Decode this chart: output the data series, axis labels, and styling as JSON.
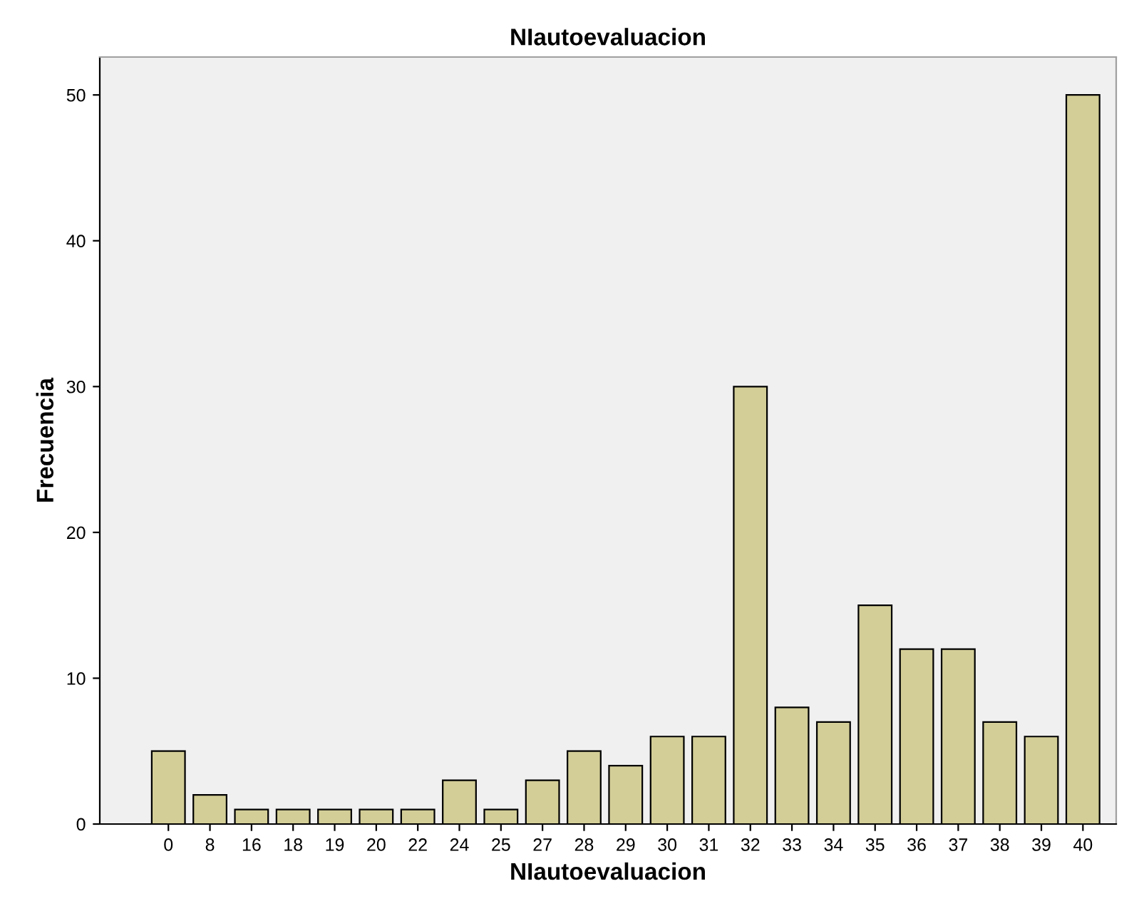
{
  "chart_data": {
    "type": "bar",
    "title": "NIautoevaluacion",
    "xlabel": "NIautoevaluacion",
    "ylabel": "Frecuencia",
    "categories": [
      "0",
      "8",
      "16",
      "18",
      "19",
      "20",
      "22",
      "24",
      "25",
      "27",
      "28",
      "29",
      "30",
      "31",
      "32",
      "33",
      "34",
      "35",
      "36",
      "37",
      "38",
      "39",
      "40"
    ],
    "values": [
      5,
      2,
      1,
      1,
      1,
      1,
      1,
      3,
      1,
      3,
      5,
      4,
      6,
      6,
      30,
      8,
      7,
      15,
      12,
      12,
      7,
      6,
      50
    ],
    "color": "#d3ce97",
    "ylim": [
      0,
      52.6
    ],
    "yticks": [
      0,
      10,
      20,
      30,
      40,
      50
    ],
    "grid": false,
    "legend": false
  }
}
